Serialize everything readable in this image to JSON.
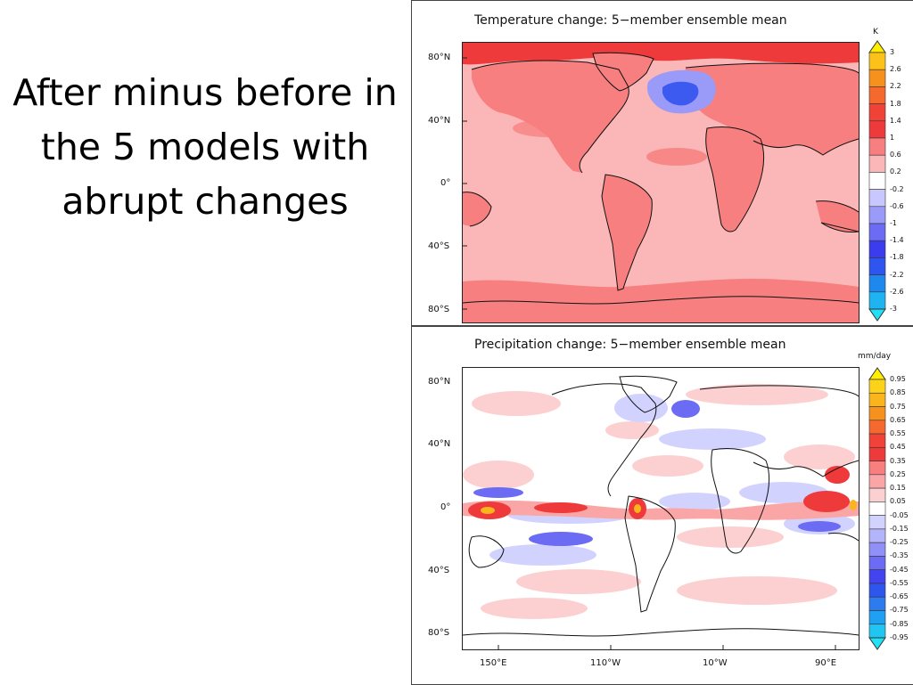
{
  "slide": {
    "title_lines": [
      "After minus before in",
      "the 5 models with",
      "abrupt changes"
    ]
  },
  "maps": {
    "temperature": {
      "title": "Temperature change: 5−member ensemble mean",
      "unit": "K",
      "lat_labels": [
        "80°N",
        "40°N",
        "0°",
        "40°S",
        "80°S"
      ],
      "lon_labels": [],
      "colorbar": {
        "levels": [
          "3",
          "2.6",
          "2.2",
          "1.8",
          "1.4",
          "1",
          "0.6",
          "0.2",
          "-0.2",
          "-0.6",
          "-1",
          "-1.4",
          "-1.8",
          "-2.2",
          "-2.6",
          "-3"
        ],
        "colors": [
          "#ffee00",
          "#fcc21a",
          "#f7911e",
          "#f5682e",
          "#f04236",
          "#ee3a3a",
          "#f77f7f",
          "#fbb7b7",
          "#ffffff",
          "#c8c8ff",
          "#9a9af8",
          "#6b6bf3",
          "#3c3cef",
          "#2f55ef",
          "#1e88ef",
          "#1fb3f2",
          "#22e0f5"
        ],
        "ocean_color": "#fbb7b7",
        "land_color": "#f77f7f",
        "arctic_color": "#ee3a3a",
        "cooling_color": "#3c5af0"
      }
    },
    "precipitation": {
      "title": "Precipitation change: 5−member ensemble mean",
      "unit": "mm/day",
      "lat_labels": [
        "80°N",
        "40°N",
        "0°",
        "40°S",
        "80°S"
      ],
      "lon_labels": [
        "150°E",
        "110°W",
        "10°W",
        "90°E"
      ],
      "colorbar": {
        "levels": [
          "0.95",
          "0.85",
          "0.75",
          "0.65",
          "0.55",
          "0.45",
          "0.35",
          "0.25",
          "0.15",
          "0.05",
          "-0.05",
          "-0.15",
          "-0.25",
          "-0.35",
          "-0.45",
          "-0.55",
          "-0.65",
          "-0.75",
          "-0.85",
          "-0.95"
        ],
        "colors": [
          "#ffee00",
          "#fdd21b",
          "#fab51c",
          "#f7911e",
          "#f5682e",
          "#f04236",
          "#ee3a3a",
          "#f77f7f",
          "#fba6a6",
          "#fcd0d0",
          "#ffffff",
          "#d2d2ff",
          "#b4b4fa",
          "#9090f6",
          "#6b6bf3",
          "#4343ef",
          "#2f55ef",
          "#2d7bef",
          "#1fa0f0",
          "#20c5f3",
          "#22e0f5"
        ]
      }
    }
  }
}
